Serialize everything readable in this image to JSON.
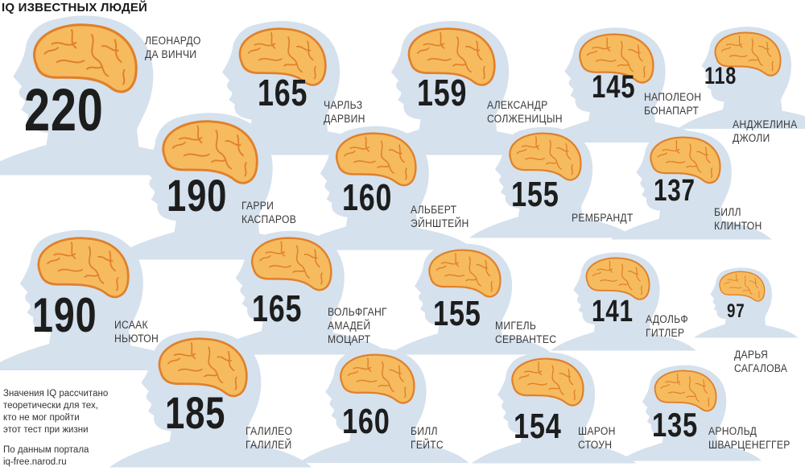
{
  "title": "IQ ИЗВЕСТНЫХ ЛЮДЕЙ",
  "colors": {
    "head": "#d5e1ed",
    "brain": "#f6bb5e",
    "brain_outline": "#e0802a",
    "number": "#1d1d1d"
  },
  "people": [
    {
      "iq": "220",
      "name": [
        "ЛЕОНАРДО",
        "ДА ВИНЧИ"
      ]
    },
    {
      "iq": "165",
      "name": [
        "ЧАРЛЬЗ",
        "ДАРВИН"
      ]
    },
    {
      "iq": "159",
      "name": [
        "АЛЕКСАНДР",
        "СОЛЖЕНИЦЫН"
      ]
    },
    {
      "iq": "145",
      "name": [
        "НАПОЛЕОН",
        "БОНАПАРТ"
      ]
    },
    {
      "iq": "118",
      "name": [
        "АНДЖЕЛИНА",
        "ДЖОЛИ"
      ]
    },
    {
      "iq": "190",
      "name": [
        "ГАРРИ",
        "КАСПАРОВ"
      ]
    },
    {
      "iq": "160",
      "name": [
        "АЛЬБЕРТ",
        "ЭЙНШТЕЙН"
      ]
    },
    {
      "iq": "155",
      "name": [
        "РЕМБРАНДТ"
      ]
    },
    {
      "iq": "137",
      "name": [
        "БИЛЛ",
        "КЛИНТОН"
      ]
    },
    {
      "iq": "190",
      "name": [
        "ИСААК",
        "НЬЮТОН"
      ]
    },
    {
      "iq": "165",
      "name": [
        "ВОЛЬФГАНГ",
        "АМАДЕЙ",
        "МОЦАРТ"
      ]
    },
    {
      "iq": "155",
      "name": [
        "МИГЕЛЬ",
        "СЕРВАНТЕС"
      ]
    },
    {
      "iq": "141",
      "name": [
        "АДОЛЬФ",
        "ГИТЛЕР"
      ]
    },
    {
      "iq": "97",
      "name": [
        "ДАРЬЯ",
        "САГАЛОВА"
      ]
    },
    {
      "iq": "185",
      "name": [
        "ГАЛИЛЕО",
        "ГАЛИЛЕЙ"
      ]
    },
    {
      "iq": "160",
      "name": [
        "БИЛЛ",
        "ГЕЙТС"
      ]
    },
    {
      "iq": "154",
      "name": [
        "ШАРОН",
        "СТОУН"
      ]
    },
    {
      "iq": "135",
      "name": [
        "АРНОЛЬД",
        "ШВАРЦЕНЕГГЕР"
      ]
    }
  ],
  "note": [
    "Значения IQ рассчитано",
    "теоретически для тех,",
    "кто не мог пройти",
    "этот тест при жизни"
  ],
  "source": [
    "По данным портала",
    "iq-free.narod.ru"
  ]
}
